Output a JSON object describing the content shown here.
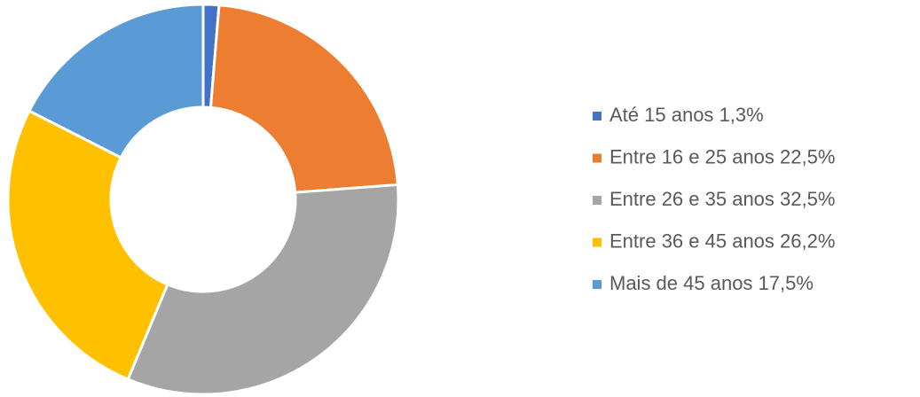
{
  "chart_data": {
    "type": "donut",
    "categories": [
      "Até 15 anos",
      "Entre 16 e 25 anos",
      "Entre 26 e 35 anos",
      "Entre 36 e 45 anos",
      "Mais de 45 anos"
    ],
    "values": [
      1.3,
      22.5,
      32.5,
      26.2,
      17.5
    ],
    "value_labels": [
      "1,3%",
      "22,5%",
      "32,5%",
      "26,2%",
      "17,5%"
    ],
    "colors": [
      "#4472c4",
      "#ed7d31",
      "#a5a5a5",
      "#ffc000",
      "#5b9bd5"
    ],
    "legend": "right"
  }
}
